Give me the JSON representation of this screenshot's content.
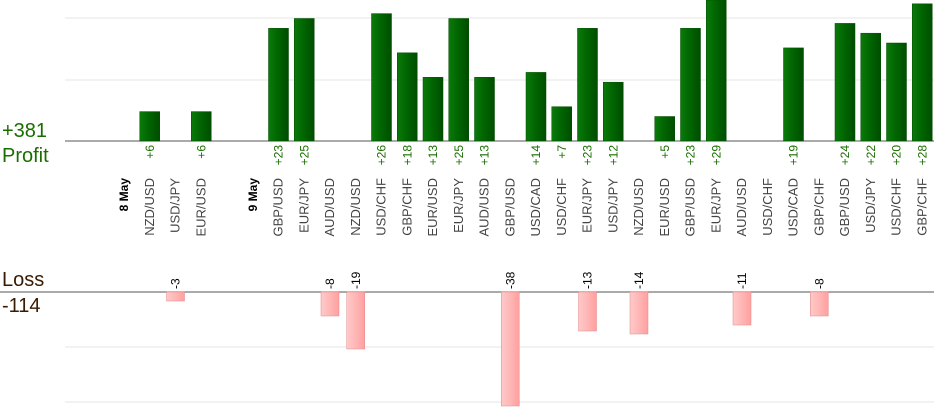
{
  "summary": {
    "profit_total": "+381",
    "profit_label": "Profit",
    "loss_label": "Loss",
    "loss_total": "-114"
  },
  "colors": {
    "profit_bar": "#006400",
    "profit_text": "#1a6e00",
    "loss_bar": "#ffb6b6",
    "loss_text": "#3a1a00",
    "grid": "#e6e6e6",
    "axis": "#555555"
  },
  "chart_data": {
    "type": "bar",
    "title": "",
    "xlabel": "",
    "ylabel": "",
    "grid": true,
    "categories": [
      "8 May",
      "NZD/USD",
      "USD/JPY",
      "EUR/USD",
      "",
      "9 May",
      "GBP/USD",
      "EUR/JPY",
      "AUD/USD",
      "NZD/USD",
      "USD/CHF",
      "GBP/CHF",
      "EUR/USD",
      "EUR/JPY",
      "AUD/USD",
      "GBP/USD",
      "USD/CAD",
      "USD/CHF",
      "EUR/JPY",
      "USD/JPY",
      "NZD/USD",
      "EUR/USD",
      "GBP/USD",
      "EUR/JPY",
      "AUD/USD",
      "USD/CHF",
      "USD/CAD",
      "GBP/CHF",
      "GBP/USD",
      "USD/JPY",
      "USD/CHF",
      "GBP/CHF"
    ],
    "date_markers": [
      "8 May",
      "9 May"
    ],
    "series": [
      {
        "values": [
          null,
          6,
          null,
          6,
          null,
          null,
          23,
          25,
          null,
          null,
          26,
          18,
          13,
          25,
          13,
          null,
          14,
          7,
          23,
          12,
          null,
          5,
          23,
          29,
          null,
          null,
          19,
          null,
          24,
          22,
          20,
          28
        ]
      },
      {
        "values": [
          null,
          null,
          -3,
          null,
          null,
          null,
          null,
          null,
          -8,
          -19,
          null,
          null,
          null,
          null,
          null,
          -38,
          null,
          null,
          -13,
          null,
          -14,
          null,
          null,
          null,
          -11,
          null,
          null,
          -8,
          null,
          null,
          null,
          null
        ]
      }
    ],
    "profit_labels": [
      null,
      "+6",
      null,
      "+6",
      null,
      null,
      "+23",
      "+25",
      null,
      null,
      "+26",
      "+18",
      "+13",
      "+25",
      "+13",
      null,
      "+14",
      "+7",
      "+23",
      "+12",
      null,
      "+5",
      "+23",
      "+29",
      null,
      null,
      "+19",
      null,
      "+24",
      "+22",
      "+20",
      "+28"
    ],
    "loss_labels": [
      null,
      null,
      "-3",
      null,
      null,
      null,
      null,
      null,
      "-8",
      "-19",
      null,
      null,
      null,
      null,
      null,
      "-38",
      null,
      null,
      "-13",
      null,
      "-14",
      null,
      null,
      null,
      "-11",
      null,
      null,
      "-8",
      null,
      null,
      null,
      null
    ]
  }
}
